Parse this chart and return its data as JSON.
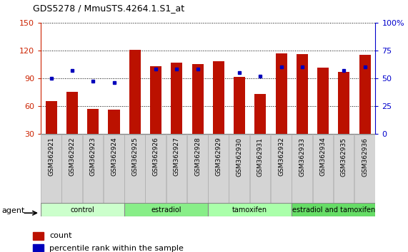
{
  "title": "GDS5278 / MmuSTS.4264.1.S1_at",
  "samples": [
    "GSM362921",
    "GSM362922",
    "GSM362923",
    "GSM362924",
    "GSM362925",
    "GSM362926",
    "GSM362927",
    "GSM362928",
    "GSM362929",
    "GSM362930",
    "GSM362931",
    "GSM362932",
    "GSM362933",
    "GSM362934",
    "GSM362935",
    "GSM362936"
  ],
  "count_values": [
    65,
    75,
    57,
    56,
    121,
    103,
    107,
    105,
    108,
    91,
    73,
    117,
    116,
    101,
    97,
    115
  ],
  "percentile_values": [
    50,
    57,
    47,
    46,
    null,
    58,
    58,
    58,
    null,
    55,
    52,
    60,
    60,
    null,
    57,
    60
  ],
  "bar_color": "#bb1100",
  "dot_color": "#0000bb",
  "groups": [
    {
      "label": "control",
      "start": 0,
      "end": 4,
      "color": "#ccffcc"
    },
    {
      "label": "estradiol",
      "start": 4,
      "end": 8,
      "color": "#88ee88"
    },
    {
      "label": "tamoxifen",
      "start": 8,
      "end": 12,
      "color": "#aaffaa"
    },
    {
      "label": "estradiol and tamoxifen",
      "start": 12,
      "end": 16,
      "color": "#66dd66"
    }
  ],
  "ylim_left": [
    30,
    150
  ],
  "ylim_right": [
    0,
    100
  ],
  "yticks_left": [
    30,
    60,
    90,
    120,
    150
  ],
  "yticks_right": [
    0,
    25,
    50,
    75,
    100
  ],
  "left_color": "#cc2200",
  "right_color": "#0000cc",
  "legend_count_label": "count",
  "legend_pct_label": "percentile rank within the sample",
  "agent_label": "agent"
}
